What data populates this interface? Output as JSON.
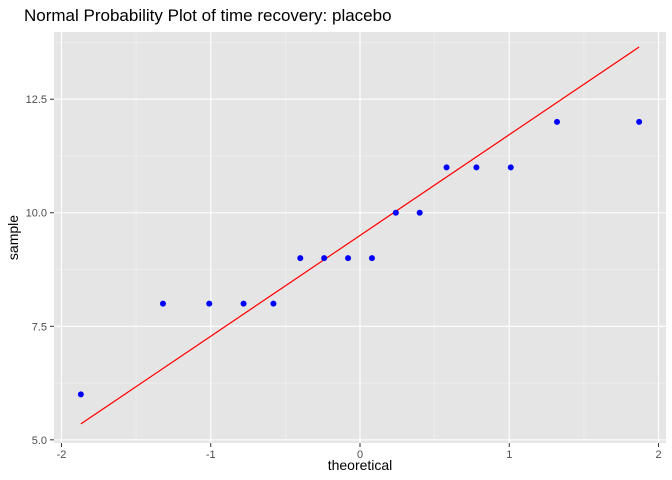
{
  "chart_data": {
    "type": "scatter",
    "title": "Normal Probability Plot of time recovery: placebo",
    "xlabel": "theoretical",
    "ylabel": "sample",
    "xlim": [
      -2.05,
      2.05
    ],
    "ylim": [
      4.93,
      13.98
    ],
    "x_ticks": [
      -2,
      -1,
      0,
      1,
      2
    ],
    "x_tick_labels": [
      "-2",
      "-1",
      "0",
      "1",
      "2"
    ],
    "y_ticks": [
      5.0,
      7.5,
      10.0,
      12.5
    ],
    "y_tick_labels": [
      "5.0",
      "7.5",
      "10.0",
      "12.5"
    ],
    "grid": true,
    "background": "#e5e5e5",
    "point_color": "#0000ff",
    "line_color": "#ff0000",
    "points": [
      {
        "x": -1.87,
        "y": 6
      },
      {
        "x": -1.32,
        "y": 8
      },
      {
        "x": -1.01,
        "y": 8
      },
      {
        "x": -0.78,
        "y": 8
      },
      {
        "x": -0.58,
        "y": 8
      },
      {
        "x": -0.4,
        "y": 9
      },
      {
        "x": -0.24,
        "y": 9
      },
      {
        "x": -0.08,
        "y": 9
      },
      {
        "x": 0.08,
        "y": 9
      },
      {
        "x": 0.24,
        "y": 10
      },
      {
        "x": 0.4,
        "y": 10
      },
      {
        "x": 0.58,
        "y": 11
      },
      {
        "x": 0.78,
        "y": 11
      },
      {
        "x": 1.01,
        "y": 11
      },
      {
        "x": 1.32,
        "y": 12
      },
      {
        "x": 1.87,
        "y": 12
      }
    ],
    "reference_line": {
      "x": [
        -1.87,
        1.87
      ],
      "y": [
        5.35,
        13.65
      ]
    }
  }
}
